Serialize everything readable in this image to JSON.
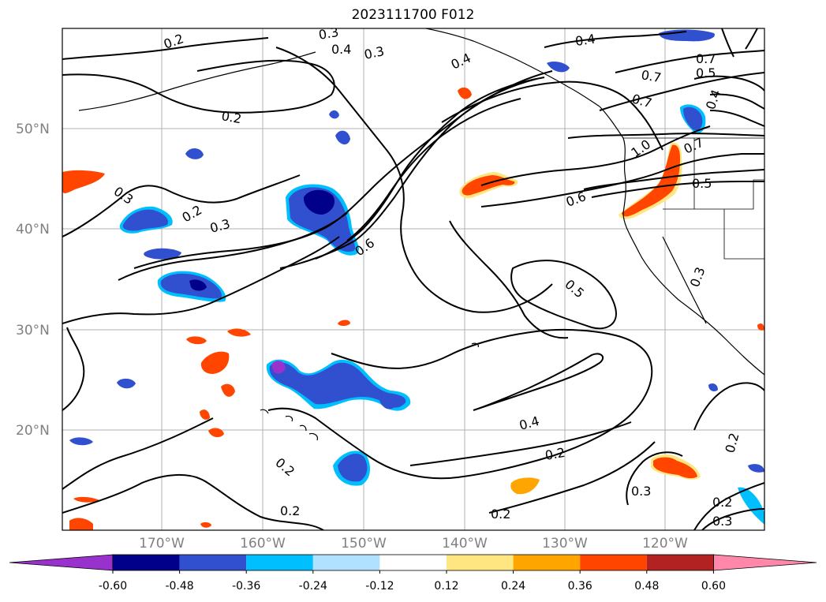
{
  "title": "2023111700 F012",
  "lat_labels": [
    "50°N",
    "40°N",
    "30°N",
    "20°N"
  ],
  "lon_labels": [
    "170°W",
    "160°W",
    "150°W",
    "140°W",
    "130°W",
    "120°W"
  ],
  "contour_labels": [
    "0.2",
    "0.3",
    "0.4",
    "0.5",
    "0.6",
    "0.7",
    "1.0"
  ],
  "colorbar": {
    "ticks": [
      "-0.60",
      "-0.48",
      "-0.36",
      "-0.24",
      "-0.12",
      "0.12",
      "0.24",
      "0.36",
      "0.48",
      "0.60"
    ],
    "colors": [
      "#9932cc",
      "#00008b",
      "#3050d0",
      "#00bfff",
      "#b0e2ff",
      "#ffffff",
      "#ffe680",
      "#ffa500",
      "#ff4500",
      "#b22222",
      "#ff88aa"
    ]
  },
  "fill_colors": {
    "blue_light": "#b0e2ff",
    "blue_mid": "#00bfff",
    "blue": "#3050d0",
    "blue_dark": "#00008b",
    "purple": "#9932cc",
    "yellow": "#ffe680",
    "orange": "#ffa500",
    "red_orange": "#ff4500"
  }
}
